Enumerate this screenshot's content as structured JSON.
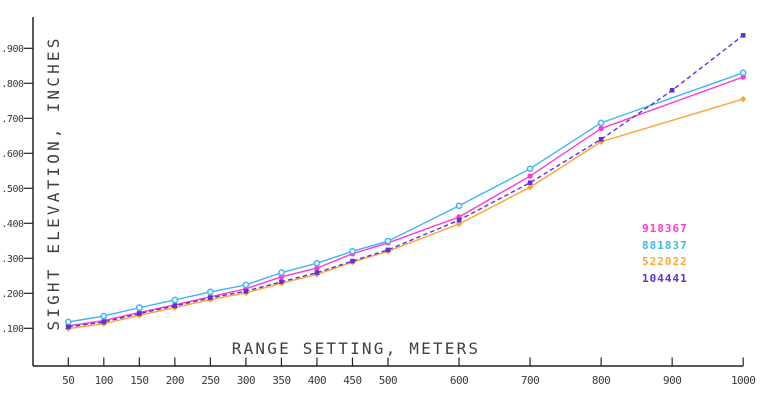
{
  "chart_data": {
    "type": "line",
    "title": "",
    "xlabel": "RANGE SETTING, METERS",
    "ylabel": "SIGHT ELEVATION, INCHES",
    "x_tick_values": [
      50,
      100,
      150,
      200,
      250,
      300,
      350,
      400,
      450,
      500,
      600,
      700,
      800,
      900,
      1000
    ],
    "x_tick_labels": [
      "50",
      "100",
      "150",
      "200",
      "250",
      "300",
      "350",
      "400",
      "450",
      "500",
      "600",
      "700",
      "800",
      "900",
      "1000"
    ],
    "y_tick_values": [
      0.1,
      0.2,
      0.3,
      0.4,
      0.5,
      0.6,
      0.7,
      0.8,
      0.9
    ],
    "y_tick_labels": [
      ".100",
      ".200",
      ".300",
      ".400",
      ".500",
      ".600",
      ".700",
      ".800",
      ".900"
    ],
    "xlim": [
      0,
      1000
    ],
    "ylim": [
      0.0,
      1.0
    ],
    "grid": false,
    "legend_position": "inside-right",
    "axis_color": "#222222",
    "text_color": "#3f3f3f",
    "series": [
      {
        "name": "918367",
        "color": "#ff38d0",
        "marker": "circle",
        "line": "solid",
        "x": [
          50,
          100,
          150,
          200,
          250,
          300,
          350,
          400,
          450,
          500,
          600,
          700,
          800,
          1000
        ],
        "y": [
          0.107,
          0.122,
          0.145,
          0.167,
          0.19,
          0.213,
          0.247,
          0.272,
          0.313,
          0.344,
          0.418,
          0.535,
          0.671,
          0.818
        ]
      },
      {
        "name": "881837",
        "color": "#3cb6f4",
        "marker": "circle-open",
        "line": "solid",
        "x": [
          50,
          100,
          150,
          200,
          250,
          300,
          350,
          400,
          450,
          500,
          600,
          700,
          800,
          1000
        ],
        "y": [
          0.118,
          0.135,
          0.159,
          0.181,
          0.204,
          0.224,
          0.259,
          0.286,
          0.32,
          0.349,
          0.45,
          0.556,
          0.687,
          0.83
        ]
      },
      {
        "name": "522022",
        "color": "#f9a637",
        "marker": "diamond",
        "line": "solid",
        "x": [
          50,
          100,
          150,
          200,
          250,
          300,
          350,
          400,
          450,
          500,
          600,
          700,
          800,
          1000
        ],
        "y": [
          0.099,
          0.113,
          0.137,
          0.159,
          0.182,
          0.201,
          0.229,
          0.254,
          0.289,
          0.32,
          0.398,
          0.503,
          0.633,
          0.755
        ]
      },
      {
        "name": "104441",
        "color": "#6030d8",
        "marker": "square",
        "line": "dashed",
        "x": [
          50,
          100,
          150,
          200,
          250,
          300,
          350,
          400,
          450,
          500,
          600,
          700,
          800,
          900,
          1000
        ],
        "y": [
          0.104,
          0.118,
          0.142,
          0.164,
          0.187,
          0.206,
          0.233,
          0.259,
          0.292,
          0.324,
          0.409,
          0.516,
          0.64,
          0.78,
          0.937
        ]
      }
    ]
  }
}
